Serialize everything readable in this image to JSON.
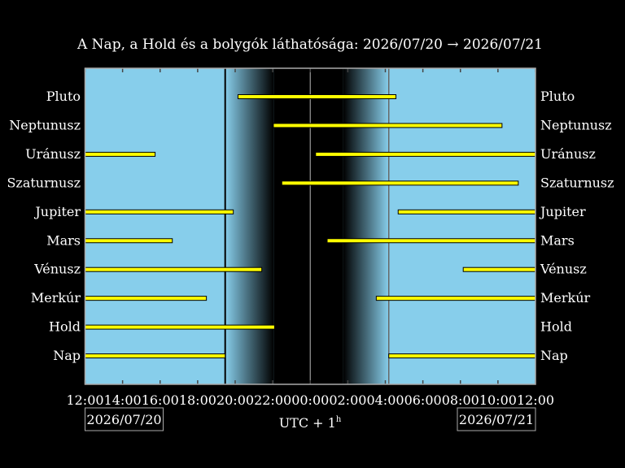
{
  "chart_data": {
    "type": "bar",
    "subtype": "timeline",
    "title": "A Nap, a Hold és a bolygók láthatósága: 2026/07/20 → 2026/07/21",
    "xlabel": "UTC + 1",
    "xlabel_sup": "h",
    "x_range": [
      "2026/07/20 12:00",
      "2026/07/21 12:00"
    ],
    "x_ticks": [
      "12:00",
      "14:00",
      "16:00",
      "18:00",
      "20:00",
      "22:00",
      "00:00",
      "02:00",
      "04:00",
      "06:00",
      "08:00",
      "10:00",
      "12:00"
    ],
    "date_left": "2026/07/20",
    "date_right": "2026/07/21",
    "twilight": {
      "sunset": "19:28",
      "night_start": "22:04",
      "night_end": "01:45",
      "sunrise": "04:11"
    },
    "colors": {
      "day": "#87CEEB",
      "night": "#000000",
      "bar": "#FFFF00",
      "bar_outline": "#000000"
    },
    "grid": false,
    "rows": [
      {
        "name": "Pluto",
        "segments": [
          [
            "20:09",
            "04:34"
          ]
        ]
      },
      {
        "name": "Neptunusz",
        "segments": [
          [
            "22:02",
            "10:13"
          ]
        ]
      },
      {
        "name": "Uránusz",
        "segments": [
          [
            "12:00",
            "15:44"
          ],
          [
            "00:17",
            "12:00"
          ]
        ]
      },
      {
        "name": "Szaturnusz",
        "segments": [
          [
            "22:29",
            "11:05"
          ]
        ]
      },
      {
        "name": "Jupiter",
        "segments": [
          [
            "12:00",
            "19:54"
          ],
          [
            "04:41",
            "12:00"
          ]
        ]
      },
      {
        "name": "Mars",
        "segments": [
          [
            "12:00",
            "16:39"
          ],
          [
            "00:54",
            "12:00"
          ]
        ]
      },
      {
        "name": "Vénusz",
        "segments": [
          [
            "12:00",
            "21:25"
          ],
          [
            "08:09",
            "12:00"
          ]
        ]
      },
      {
        "name": "Merkúr",
        "segments": [
          [
            "12:00",
            "18:28"
          ],
          [
            "03:31",
            "12:00"
          ]
        ]
      },
      {
        "name": "Hold",
        "segments": [
          [
            "12:00",
            "22:06"
          ]
        ]
      },
      {
        "name": "Nap",
        "segments": [
          [
            "12:00",
            "19:28"
          ],
          [
            "04:11",
            "12:00"
          ]
        ]
      }
    ]
  }
}
